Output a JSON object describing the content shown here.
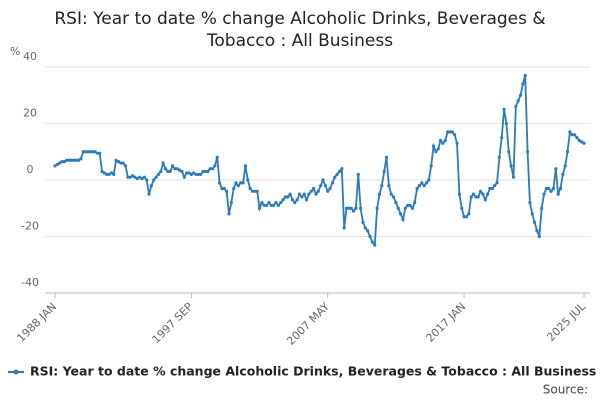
{
  "chart_data": {
    "type": "line",
    "title": "RSI: Year to date % change Alcoholic Drinks, Beverages & Tobacco : All Business",
    "ylabel": "%",
    "source": "Source:",
    "categories": [
      "1988 JAN",
      null,
      null,
      null,
      null,
      null,
      null,
      null,
      null,
      null,
      null,
      null,
      null,
      null,
      null,
      null,
      null,
      null,
      null,
      null,
      null,
      null,
      null,
      null,
      null,
      null,
      null,
      null,
      null,
      null,
      null,
      null,
      null,
      null,
      null,
      null,
      null,
      null,
      null,
      null,
      null,
      null,
      null,
      null,
      null,
      null,
      null,
      null,
      null,
      null,
      null,
      null,
      null,
      null,
      null,
      null,
      null,
      null,
      "1997 SEP",
      null,
      null,
      null,
      null,
      null,
      null,
      null,
      null,
      null,
      null,
      null,
      null,
      null,
      null,
      null,
      null,
      null,
      null,
      null,
      null,
      null,
      null,
      null,
      null,
      null,
      null,
      null,
      null,
      null,
      null,
      null,
      null,
      null,
      null,
      null,
      null,
      null,
      null,
      null,
      null,
      null,
      null,
      null,
      null,
      null,
      null,
      null,
      null,
      null,
      null,
      null,
      null,
      null,
      null,
      null,
      null,
      null,
      "2007 MAY",
      null,
      null,
      null,
      null,
      null,
      null,
      null,
      null,
      null,
      null,
      null,
      null,
      null,
      null,
      null,
      null,
      null,
      null,
      null,
      null,
      null,
      null,
      null,
      null,
      null,
      null,
      null,
      null,
      null,
      null,
      null,
      null,
      null,
      null,
      null,
      null,
      null,
      null,
      null,
      null,
      null,
      null,
      null,
      null,
      null,
      null,
      null,
      null,
      null,
      null,
      null,
      null,
      null,
      null,
      null,
      null,
      null,
      "2017 JAN",
      null,
      null,
      null,
      null,
      null,
      null,
      null,
      null,
      null,
      null,
      null,
      null,
      null,
      null,
      null,
      null,
      null,
      null,
      null,
      null,
      null,
      null,
      null,
      null,
      null,
      null,
      null,
      null,
      null,
      null,
      null,
      null,
      null,
      null,
      null,
      null,
      null,
      null,
      null,
      null,
      null,
      null,
      null,
      null,
      null,
      null,
      null,
      null,
      null,
      null,
      "2025 JUL"
    ],
    "series": [
      {
        "name": "RSI: Year to date % change Alcoholic Drinks, Beverages & Tobacco : All Business",
        "color": "#2b7bb9",
        "values": [
          5,
          5.5,
          6,
          6.5,
          6.5,
          7,
          7,
          7,
          7,
          7,
          7,
          7.5,
          10,
          10,
          10,
          10,
          10,
          10,
          9.5,
          9.5,
          3,
          2.5,
          2,
          2,
          2.5,
          2,
          7,
          6.5,
          6,
          6,
          5,
          1,
          1,
          1.5,
          1,
          0.5,
          1,
          0.5,
          1,
          0,
          -5,
          -2,
          0,
          1,
          2,
          3,
          6,
          4,
          3,
          3,
          5,
          4,
          4,
          3.5,
          3,
          1,
          2.5,
          2.5,
          2,
          2.5,
          2,
          2,
          2,
          3,
          3,
          3,
          4,
          4,
          5,
          8,
          -1,
          -3,
          -3,
          -4,
          -12,
          -8,
          -3,
          -1,
          -2,
          -1,
          -1,
          5,
          0,
          -3,
          -4,
          -4,
          -4,
          -10,
          -8,
          -9,
          -9,
          -8,
          -9,
          -9,
          -8,
          -9,
          -8,
          -7,
          -6,
          -6,
          -5,
          -7,
          -8,
          -7,
          -5,
          -6,
          -5,
          -7,
          -5,
          -4,
          -3,
          -5,
          -4,
          -2,
          0,
          -2,
          -4,
          -3,
          -1,
          1,
          2,
          3,
          4,
          -17,
          -10,
          -10,
          -10,
          -11,
          -10,
          2,
          -10,
          -15,
          -17,
          -18,
          -20,
          -22,
          -23,
          -10,
          -5,
          -2,
          3,
          8,
          -2,
          -5,
          -6,
          -8,
          -10,
          -12,
          -14,
          -10,
          -9,
          -9,
          -10,
          -8,
          -3,
          -2,
          -1,
          -2,
          -1,
          0,
          5,
          12,
          10,
          11,
          14,
          13,
          14,
          17,
          17,
          17,
          16,
          13,
          -5,
          -10,
          -13,
          -13,
          -12,
          -6,
          -5,
          -6,
          -6,
          -4,
          -5,
          -7,
          -5,
          -3,
          -3,
          -2,
          -1,
          8,
          15,
          25,
          20,
          10,
          5,
          1,
          26,
          28,
          30,
          34,
          37,
          10,
          -8,
          -12,
          -15,
          -18,
          -20,
          -10,
          -5,
          -3,
          -3,
          -4,
          -3,
          4,
          -5,
          -3,
          2,
          5,
          10,
          17,
          16,
          16,
          15,
          14,
          13.5,
          13
        ]
      }
    ],
    "ylim": [
      -40,
      40
    ],
    "yticks": [
      40,
      20,
      0,
      -20,
      -40
    ],
    "grid": true
  }
}
